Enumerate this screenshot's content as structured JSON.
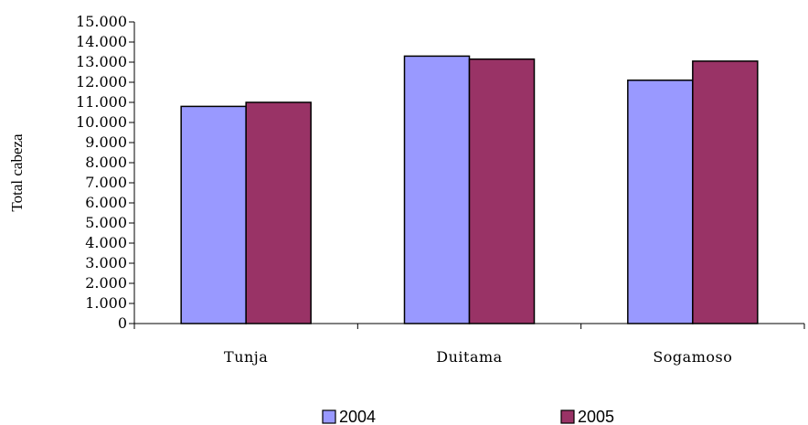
{
  "chart_data": {
    "type": "bar",
    "categories": [
      "Tunja",
      "Duitama",
      "Sogamoso"
    ],
    "series": [
      {
        "name": "2004",
        "values": [
          10800,
          13300,
          12100
        ],
        "color": "#9999ff"
      },
      {
        "name": "2005",
        "values": [
          11000,
          13150,
          13050
        ],
        "color": "#993366"
      }
    ],
    "ylabel": "Total cabeza",
    "xlabel": "",
    "ylim": [
      0,
      15000
    ],
    "yticks": [
      0,
      1000,
      2000,
      3000,
      4000,
      5000,
      6000,
      7000,
      8000,
      9000,
      10000,
      11000,
      12000,
      13000,
      14000,
      15000
    ],
    "ytick_labels": [
      "0",
      "1.000",
      "2.000",
      "3.000",
      "4.000",
      "5.000",
      "6.000",
      "7.000",
      "8.000",
      "9.000",
      "10.000",
      "11.000",
      "12.000",
      "13.000",
      "14.000",
      "15.000"
    ],
    "grid": false,
    "legend_position": "bottom"
  }
}
